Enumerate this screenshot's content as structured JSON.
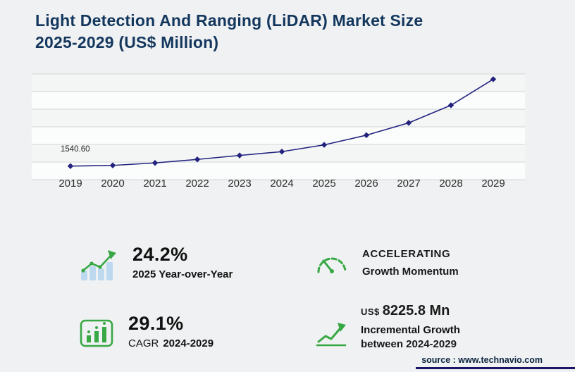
{
  "title": {
    "line1": "Light Detection And Ranging (LiDAR) Market Size",
    "line2": "2025-2029 (US$ Million)"
  },
  "chart_data": {
    "type": "line",
    "x": [
      "2019",
      "2020",
      "2021",
      "2022",
      "2023",
      "2024",
      "2025",
      "2026",
      "2027",
      "2028",
      "2029"
    ],
    "values": [
      1540.6,
      1620,
      1900,
      2300,
      2750,
      3181.1,
      3951.1,
      5050,
      6450,
      8450,
      11406.9
    ],
    "first_point_label": "1540.60",
    "title": "Light Detection And Ranging (LiDAR) Market Size 2025-2029 (US$ Million)",
    "xlabel": "",
    "ylabel": "",
    "ylim": [
      0,
      12000
    ],
    "grid": true,
    "gridlines": 7,
    "legend": "none",
    "line_color": "#23237e",
    "marker": "diamond"
  },
  "stats": {
    "yoy": {
      "value": "24.2%",
      "label": "2025 Year-over-Year"
    },
    "momentum": {
      "line1": "ACCELERATING",
      "line2": "Growth Momentum"
    },
    "cagr": {
      "value": "29.1%",
      "label_prefix": "CAGR",
      "label_range": "2024-2029"
    },
    "incremental": {
      "currency": "US$",
      "value": "8225.8 Mn",
      "label_line1": "Incremental Growth",
      "label_line2": "between 2024-2029"
    }
  },
  "source": {
    "label": "source : www.technavio.com"
  },
  "colors": {
    "accent_green": "#38a845",
    "bar_blue": "#bcd9f0",
    "line_navy": "#23237e",
    "title_navy": "#14375e",
    "footer_navy": "#1b1464"
  }
}
